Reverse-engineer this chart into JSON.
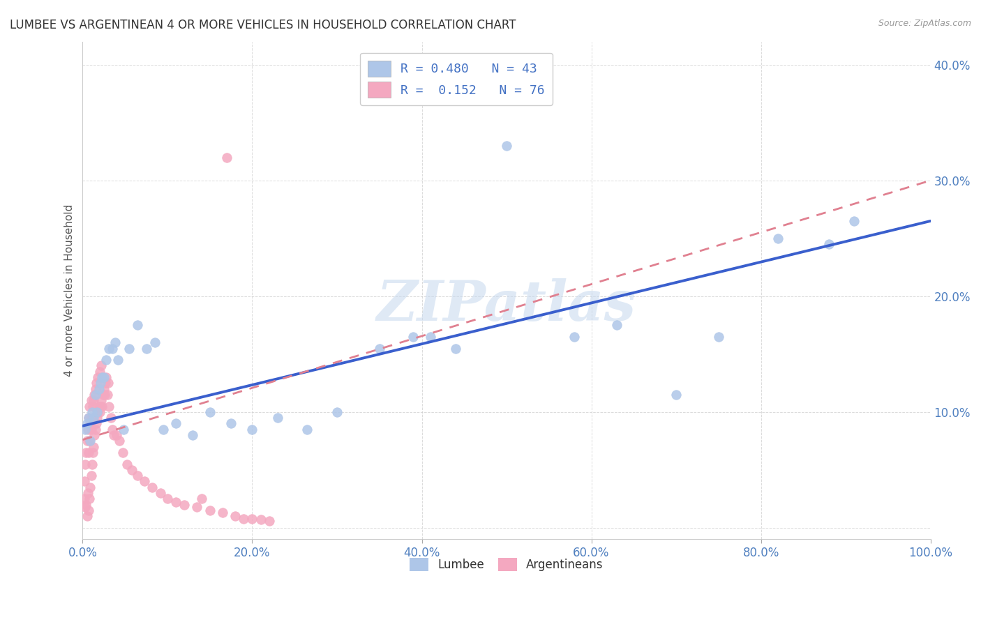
{
  "title": "LUMBEE VS ARGENTINEAN 4 OR MORE VEHICLES IN HOUSEHOLD CORRELATION CHART",
  "source": "Source: ZipAtlas.com",
  "ylabel": "4 or more Vehicles in Household",
  "xlim": [
    0,
    1.0
  ],
  "ylim": [
    -0.01,
    0.42
  ],
  "xticks": [
    0.0,
    0.2,
    0.4,
    0.6,
    0.8,
    1.0
  ],
  "xticklabels": [
    "0.0%",
    "20.0%",
    "40.0%",
    "60.0%",
    "80.0%",
    "100.0%"
  ],
  "yticks": [
    0.0,
    0.1,
    0.2,
    0.3,
    0.4
  ],
  "yticklabels": [
    "",
    "10.0%",
    "20.0%",
    "30.0%",
    "40.0%"
  ],
  "lumbee_R": 0.48,
  "lumbee_N": 43,
  "argentinean_R": 0.152,
  "argentinean_N": 76,
  "lumbee_color": "#aec6e8",
  "argentinean_color": "#f4a8c0",
  "lumbee_line_color": "#3a5fcd",
  "argentinean_line_color": "#e08090",
  "watermark": "ZIPatlas",
  "background_color": "#ffffff",
  "grid_color": "#cccccc",
  "lumbee_x": [
    0.003,
    0.005,
    0.007,
    0.009,
    0.011,
    0.013,
    0.015,
    0.017,
    0.019,
    0.021,
    0.023,
    0.025,
    0.028,
    0.031,
    0.035,
    0.038,
    0.042,
    0.048,
    0.055,
    0.065,
    0.075,
    0.085,
    0.095,
    0.11,
    0.13,
    0.15,
    0.175,
    0.2,
    0.23,
    0.265,
    0.3,
    0.35,
    0.39,
    0.41,
    0.44,
    0.5,
    0.58,
    0.63,
    0.7,
    0.75,
    0.82,
    0.88,
    0.91
  ],
  "lumbee_y": [
    0.085,
    0.09,
    0.095,
    0.075,
    0.1,
    0.095,
    0.115,
    0.1,
    0.12,
    0.125,
    0.13,
    0.13,
    0.145,
    0.155,
    0.155,
    0.16,
    0.145,
    0.085,
    0.155,
    0.175,
    0.155,
    0.16,
    0.085,
    0.09,
    0.08,
    0.1,
    0.09,
    0.085,
    0.095,
    0.085,
    0.1,
    0.155,
    0.165,
    0.165,
    0.155,
    0.33,
    0.165,
    0.175,
    0.115,
    0.165,
    0.25,
    0.245,
    0.265
  ],
  "argentinean_x": [
    0.002,
    0.002,
    0.003,
    0.003,
    0.004,
    0.004,
    0.005,
    0.005,
    0.006,
    0.006,
    0.007,
    0.007,
    0.007,
    0.008,
    0.008,
    0.008,
    0.009,
    0.009,
    0.01,
    0.01,
    0.01,
    0.011,
    0.011,
    0.012,
    0.012,
    0.013,
    0.013,
    0.014,
    0.014,
    0.015,
    0.015,
    0.016,
    0.016,
    0.017,
    0.018,
    0.018,
    0.019,
    0.02,
    0.02,
    0.021,
    0.022,
    0.022,
    0.023,
    0.024,
    0.025,
    0.026,
    0.027,
    0.028,
    0.029,
    0.03,
    0.031,
    0.033,
    0.035,
    0.037,
    0.04,
    0.043,
    0.047,
    0.052,
    0.058,
    0.065,
    0.073,
    0.082,
    0.092,
    0.1,
    0.11,
    0.12,
    0.135,
    0.15,
    0.165,
    0.18,
    0.19,
    0.2,
    0.21,
    0.22,
    0.14,
    0.17
  ],
  "argentinean_y": [
    0.025,
    0.04,
    0.018,
    0.055,
    0.02,
    0.065,
    0.01,
    0.075,
    0.03,
    0.085,
    0.015,
    0.065,
    0.095,
    0.025,
    0.075,
    0.105,
    0.035,
    0.09,
    0.045,
    0.085,
    0.11,
    0.055,
    0.095,
    0.065,
    0.105,
    0.07,
    0.11,
    0.08,
    0.115,
    0.085,
    0.12,
    0.09,
    0.125,
    0.095,
    0.1,
    0.13,
    0.105,
    0.1,
    0.135,
    0.105,
    0.11,
    0.14,
    0.105,
    0.115,
    0.12,
    0.115,
    0.125,
    0.13,
    0.115,
    0.125,
    0.105,
    0.095,
    0.085,
    0.08,
    0.08,
    0.075,
    0.065,
    0.055,
    0.05,
    0.045,
    0.04,
    0.035,
    0.03,
    0.025,
    0.022,
    0.02,
    0.018,
    0.015,
    0.013,
    0.01,
    0.008,
    0.008,
    0.007,
    0.006,
    0.025,
    0.32
  ],
  "lumbee_line_x0": 0.0,
  "lumbee_line_x1": 1.0,
  "lumbee_line_y0": 0.088,
  "lumbee_line_y1": 0.265,
  "arg_line_x0": 0.0,
  "arg_line_x1": 1.0,
  "arg_line_y0": 0.076,
  "arg_line_y1": 0.3
}
